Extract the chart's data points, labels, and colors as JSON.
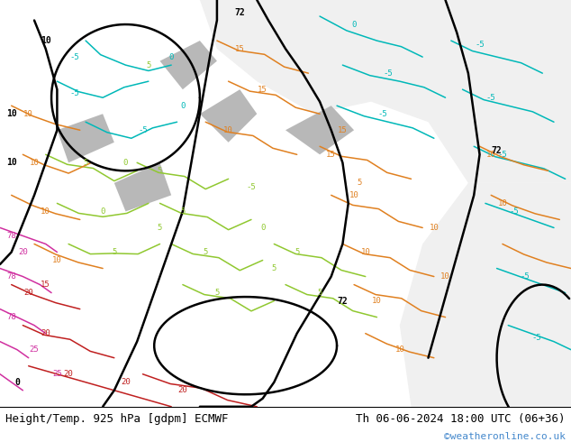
{
  "title_left": "Height/Temp. 925 hPa [gdpm] ECMWF",
  "title_right": "Th 06-06-2024 18:00 UTC (06+36)",
  "credit": "©weatheronline.co.uk",
  "bg_color": "#ffffff",
  "map_bg_light_green": "#c8e6a0",
  "map_bg_white": "#f0f0f0",
  "map_gray": "#b0b0b0",
  "footer_font_size": 10,
  "credit_color": "#4488cc",
  "fig_width": 6.34,
  "fig_height": 4.9,
  "dpi": 100
}
